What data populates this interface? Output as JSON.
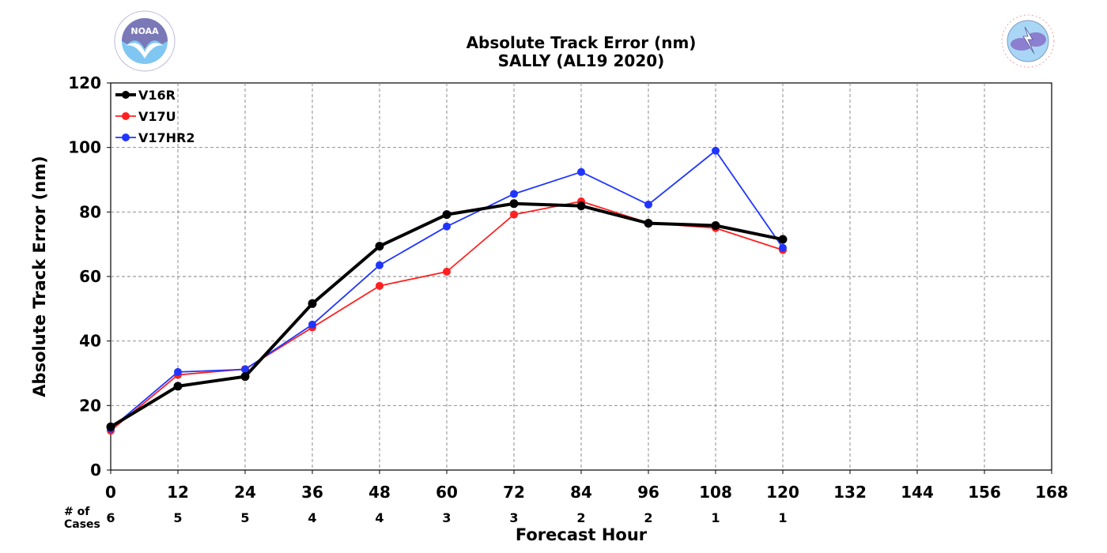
{
  "title": {
    "line1": "Absolute Track Error (nm)",
    "line2": "SALLY (AL19 2020)"
  },
  "logos": {
    "left": {
      "name": "noaa-logo",
      "text": "NOAA",
      "ring_text": "NATIONAL OCEANIC AND ATMOSPHERIC ADMINISTRATION · U.S. DEPARTMENT OF COMMERCE",
      "color": "#7b78b8"
    },
    "right": {
      "name": "nws-logo",
      "ring_text": "NATIONAL WEATHER SERVICE",
      "color": "#e86a6a"
    }
  },
  "cases": {
    "label_line1": "# of",
    "label_line2": "Cases",
    "values": [
      "6",
      "5",
      "5",
      "4",
      "4",
      "3",
      "3",
      "2",
      "2",
      "1",
      "1"
    ]
  },
  "chart_data": {
    "type": "line",
    "title": "Absolute Track Error (nm)\nSALLY (AL19 2020)",
    "xlabel": "Forecast Hour",
    "ylabel": "Absolute Track Error (nm)",
    "xlim": [
      0,
      168
    ],
    "ylim": [
      0,
      120
    ],
    "xticks": [
      0,
      12,
      24,
      36,
      48,
      60,
      72,
      84,
      96,
      108,
      120,
      132,
      144,
      156,
      168
    ],
    "yticks": [
      0,
      20,
      40,
      60,
      80,
      100,
      120
    ],
    "grid": true,
    "legend_position": "top-left",
    "x": [
      0,
      12,
      24,
      36,
      48,
      60,
      72,
      84,
      96,
      108,
      120
    ],
    "series": [
      {
        "name": "V16R",
        "color": "#000000",
        "linewidth": "thick",
        "values": [
          13.4,
          26.0,
          29.0,
          51.6,
          69.4,
          79.2,
          82.6,
          81.9,
          76.5,
          75.8,
          71.5
        ]
      },
      {
        "name": "V17U",
        "color": "#ff2020",
        "linewidth": "thin",
        "values": [
          12.2,
          29.5,
          31.3,
          44.2,
          57.1,
          61.5,
          79.2,
          83.3,
          76.6,
          75.0,
          68.2
        ]
      },
      {
        "name": "V17HR2",
        "color": "#2035ff",
        "linewidth": "thin",
        "values": [
          12.8,
          30.4,
          31.2,
          45.1,
          63.5,
          75.5,
          85.6,
          92.4,
          82.3,
          99.0,
          68.9
        ]
      }
    ]
  }
}
